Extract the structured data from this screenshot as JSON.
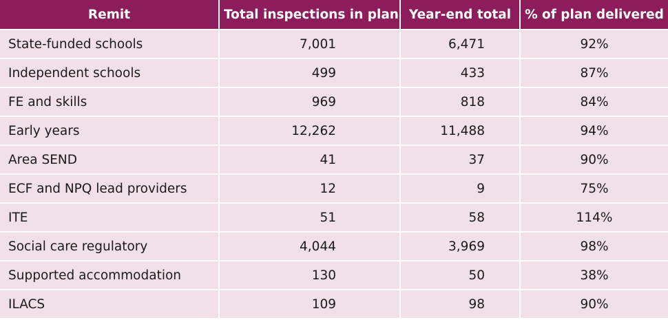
{
  "table": {
    "headers": [
      "Remit",
      "Total inspections in plan",
      "Year-end total",
      "% of plan delivered"
    ],
    "rows": [
      [
        "State-funded schools",
        "7,001",
        "6,471",
        "92%"
      ],
      [
        "Independent schools",
        "499",
        "433",
        "87%"
      ],
      [
        "FE and skills",
        "969",
        "818",
        "84%"
      ],
      [
        "Early years",
        "12,262",
        "11,488",
        "94%"
      ],
      [
        "Area SEND",
        "41",
        "37",
        "90%"
      ],
      [
        "ECF and NPQ lead providers",
        "12",
        "9",
        "75%"
      ],
      [
        "ITE",
        "51",
        "58",
        "114%"
      ],
      [
        "Social care regulatory",
        "4,044",
        "3,969",
        "98%"
      ],
      [
        "Supported accommodation",
        "130",
        "50",
        "38%"
      ],
      [
        "ILACS",
        "109",
        "98",
        "90%"
      ]
    ]
  },
  "colors": {
    "header_bg": "#8c1d5a",
    "row_bg": "#f1e0e8"
  }
}
